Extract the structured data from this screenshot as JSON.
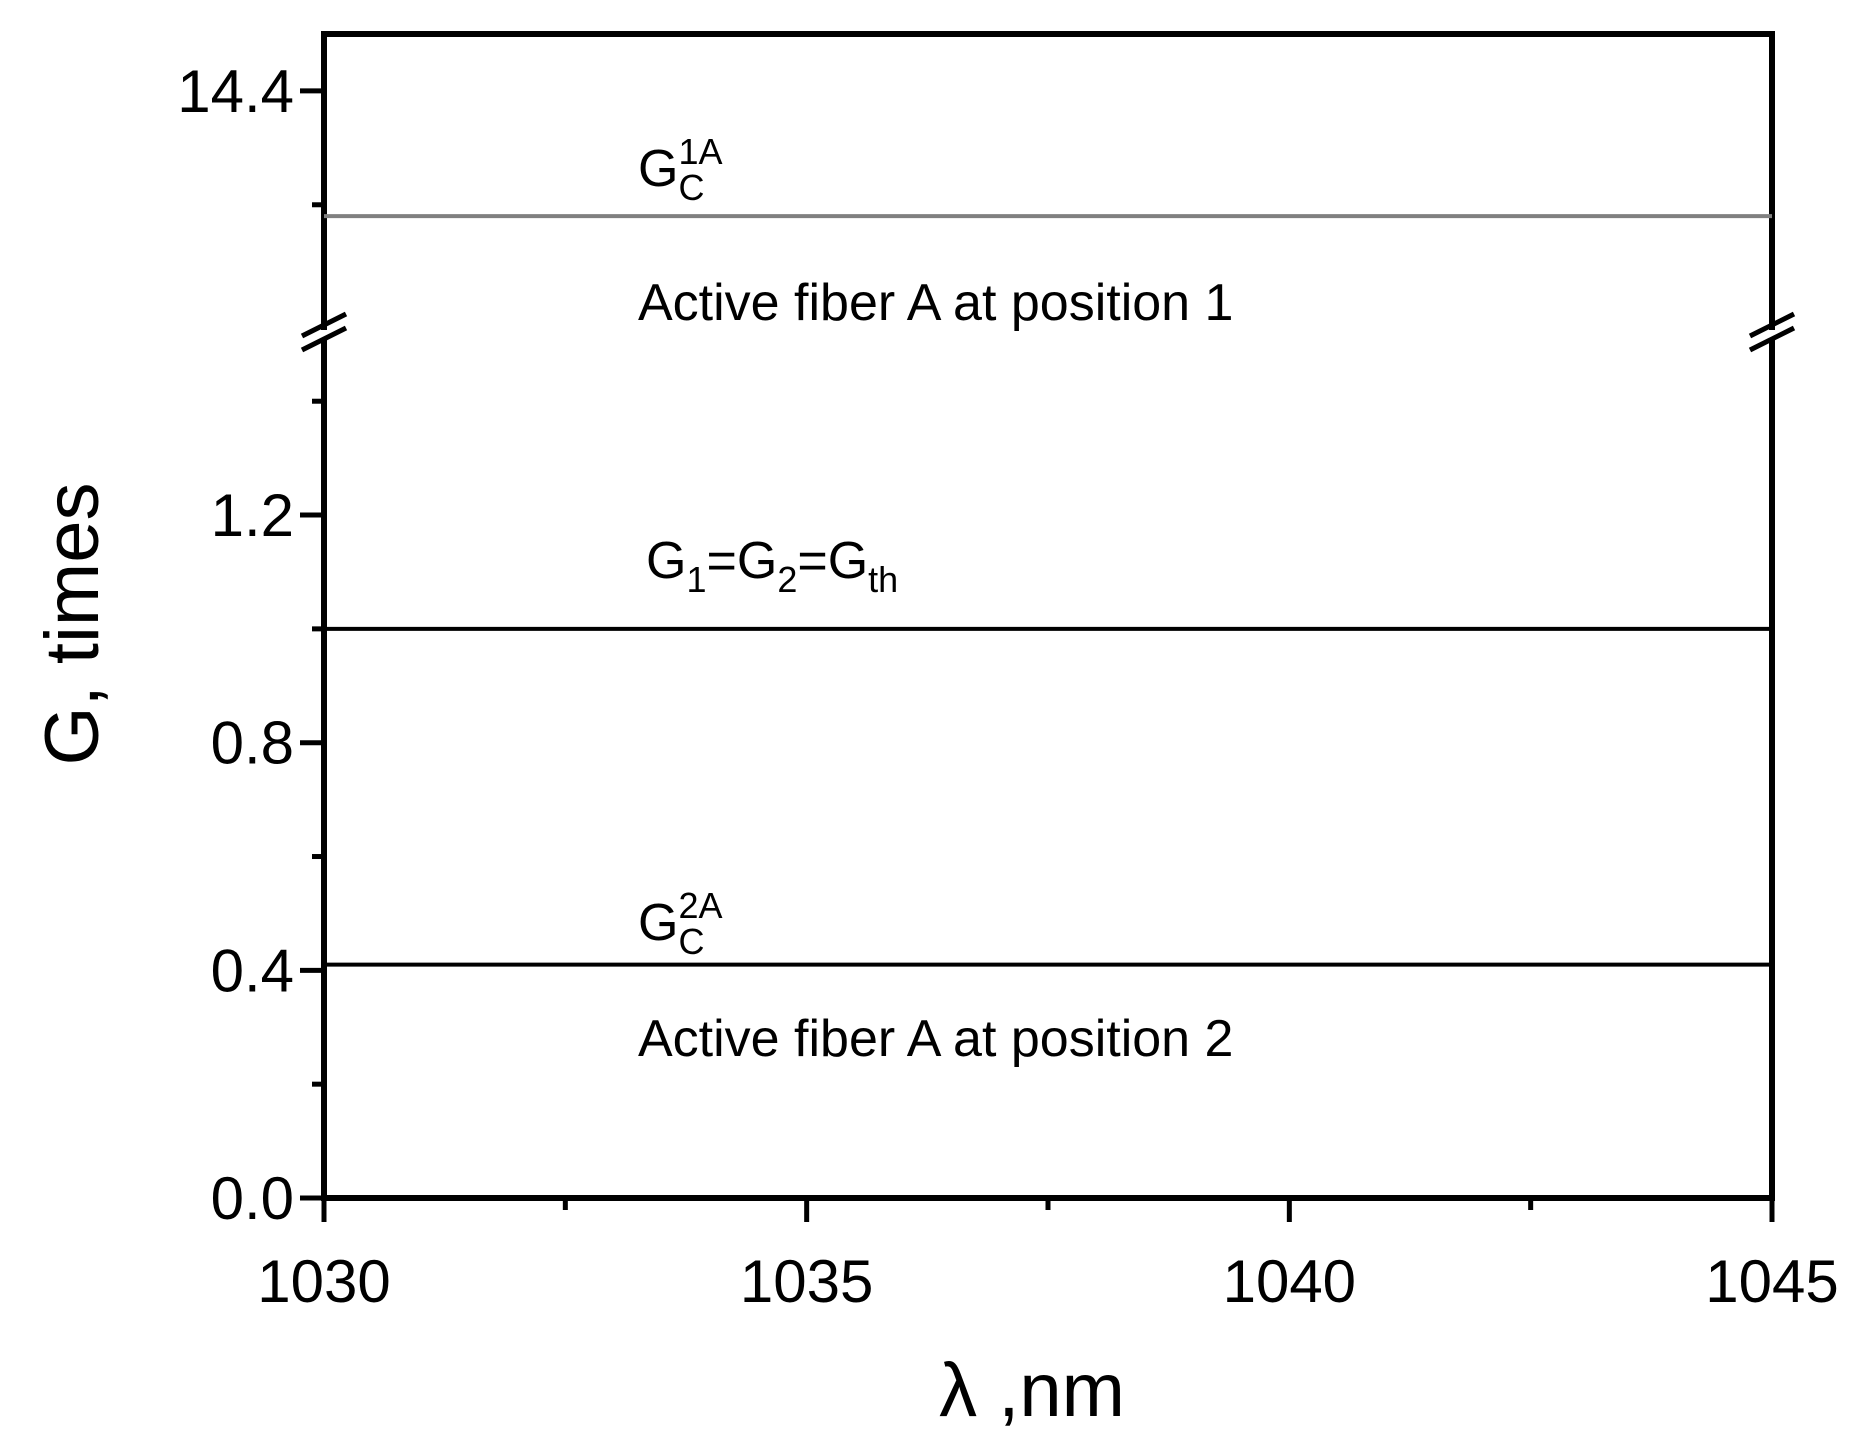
{
  "chart_data": {
    "type": "line",
    "xlabel": "λ ,nm",
    "ylabel": "G, times",
    "x": [
      1030,
      1045
    ],
    "xlim": [
      1030,
      1045
    ],
    "xticks": [
      1030,
      1035,
      1040,
      1045
    ],
    "xminorticks": [
      1032.5,
      1037.5,
      1042.5
    ],
    "segments": [
      {
        "ylim": [
          13.98,
          14.5
        ],
        "yticks": [
          14.4
        ],
        "yminorticks": [
          14.2
        ]
      },
      {
        "ylim": [
          0,
          1.49
        ],
        "yticks": [
          {
            "value": 0,
            "label": "0.0"
          },
          0.4,
          0.8,
          1.2
        ],
        "yminorticks": [
          0.2,
          0.6,
          1.0,
          1.4
        ]
      }
    ],
    "series": [
      {
        "values": [
          14.18,
          14.18
        ],
        "color": "#808080",
        "segment": 0
      },
      {
        "values": [
          1.0,
          1.0
        ],
        "color": "#000000",
        "segment": 1
      },
      {
        "values": [
          0.41,
          0.41
        ],
        "color": "#000000",
        "segment": 1
      }
    ],
    "annotations": [
      {
        "runs": [
          {
            "text": "G"
          },
          {
            "text": "C",
            "shift": "sub"
          },
          {
            "text": "1A",
            "shift": "sup",
            "stack": true
          }
        ]
      },
      {
        "runs": [
          {
            "text": "Active fiber A at position 1"
          }
        ]
      },
      {
        "runs": [
          {
            "text": "G"
          },
          {
            "text": "1",
            "shift": "sub"
          },
          {
            "text": "=G"
          },
          {
            "text": "2",
            "shift": "sub"
          },
          {
            "text": "=G"
          },
          {
            "text": "th",
            "shift": "sub"
          }
        ]
      },
      {
        "runs": [
          {
            "text": "G"
          },
          {
            "text": "C",
            "shift": "sub"
          },
          {
            "text": "2A",
            "shift": "sup",
            "stack": true
          }
        ]
      },
      {
        "runs": [
          {
            "text": "Active fiber A at position 2"
          }
        ]
      }
    ]
  }
}
